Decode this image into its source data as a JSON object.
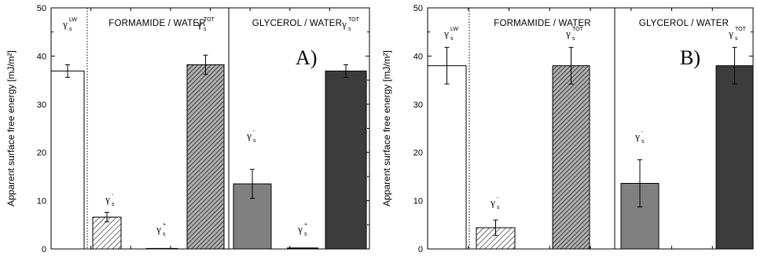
{
  "chart_data": [
    {
      "type": "bar",
      "panel_label": "A)",
      "ylabel": "Apparent surface free energy [mJ/m²]",
      "ylim": [
        0,
        50
      ],
      "yticks": [
        "0",
        "10",
        "20",
        "30",
        "40",
        "50"
      ],
      "groups": [
        {
          "label": ""
        },
        {
          "label": "FORMAMIDE / WATER"
        },
        {
          "label": "GLYCEROL / WATER"
        }
      ],
      "bars": [
        {
          "symbol": "γ",
          "sub": "s",
          "sup": "LW",
          "value": 36.9,
          "error": 1.3,
          "fill": "white",
          "group": 0
        },
        {
          "symbol": "γ",
          "sub": "s",
          "sup": "-",
          "value": 6.6,
          "error": 1.0,
          "fill": "hatch-light",
          "group": 1
        },
        {
          "symbol": "γ",
          "sub": "s",
          "sup": "+",
          "value": 0.1,
          "error": 0.0,
          "fill": "hatch-light",
          "group": 1
        },
        {
          "symbol": "γ",
          "sub": "s",
          "sup": "TOT",
          "value": 38.2,
          "error": 2.0,
          "fill": "hatch-dark",
          "group": 1
        },
        {
          "symbol": "γ",
          "sub": "s",
          "sup": "-",
          "value": 13.5,
          "error": 3.0,
          "fill": "#808080",
          "group": 2
        },
        {
          "symbol": "γ",
          "sub": "s",
          "sup": "+",
          "value": 0.0,
          "error": 0.0,
          "fill": "#808080",
          "group": 2
        },
        {
          "symbol": "γ",
          "sub": "s",
          "sup": "TOT",
          "value": 36.9,
          "error": 1.3,
          "fill": "#3c3c3c",
          "group": 2
        }
      ]
    },
    {
      "type": "bar",
      "panel_label": "B)",
      "ylabel": "Apparent surface free energy [mJ/m²]",
      "ylim": [
        0,
        50
      ],
      "yticks": [
        "0",
        "10",
        "20",
        "30",
        "40",
        "50"
      ],
      "groups": [
        {
          "label": ""
        },
        {
          "label": "FORMAMIDE / WATER"
        },
        {
          "label": "GLYCEROL / WATER"
        }
      ],
      "bars": [
        {
          "symbol": "γ",
          "sub": "s",
          "sup": "LW",
          "value": 38.0,
          "error": 3.8,
          "fill": "white",
          "group": 0
        },
        {
          "symbol": "γ",
          "sub": "s",
          "sup": "-",
          "value": 4.4,
          "error": 1.6,
          "fill": "hatch-light",
          "group": 1
        },
        {
          "symbol": "γ",
          "sub": "s",
          "sup": "TOT",
          "value": 38.0,
          "error": 3.8,
          "fill": "hatch-dark",
          "group": 1
        },
        {
          "symbol": "γ",
          "sub": "s",
          "sup": "-",
          "value": 13.6,
          "error": 4.9,
          "fill": "#808080",
          "group": 2
        },
        {
          "symbol": "γ",
          "sub": "s",
          "sup": "TOT",
          "value": 38.0,
          "error": 3.8,
          "fill": "#3c3c3c",
          "group": 2
        }
      ]
    }
  ]
}
